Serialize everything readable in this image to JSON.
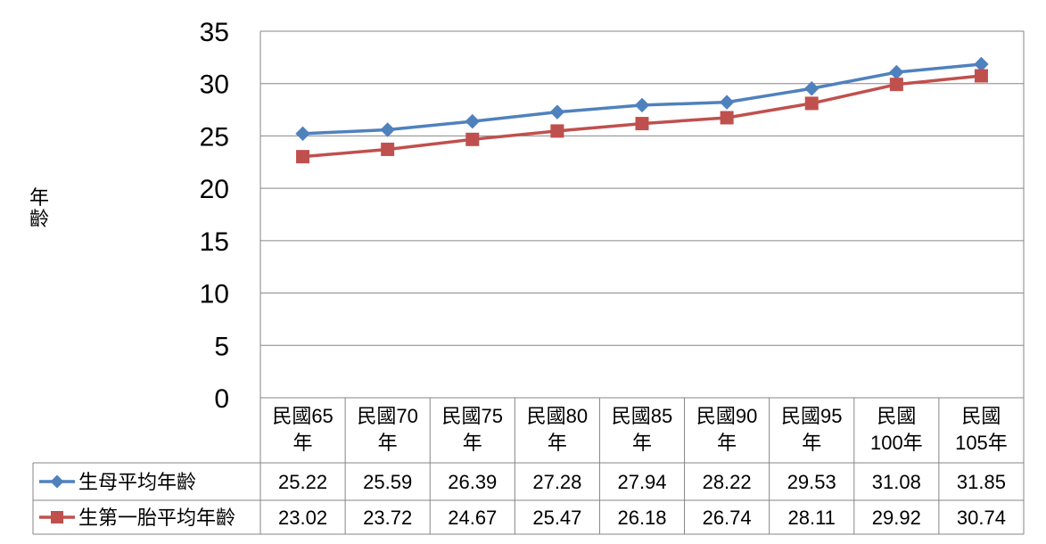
{
  "chart_data": {
    "type": "line",
    "title": "",
    "xlabel": "",
    "ylabel": "年齡",
    "ylim": [
      0,
      35
    ],
    "yticks": [
      0,
      5,
      10,
      15,
      20,
      25,
      30,
      35
    ],
    "grid": true,
    "legend": "data-table",
    "categories": [
      [
        "民國65",
        "年"
      ],
      [
        "民國70",
        "年"
      ],
      [
        "民國75",
        "年"
      ],
      [
        "民國80",
        "年"
      ],
      [
        "民國85",
        "年"
      ],
      [
        "民國90",
        "年"
      ],
      [
        "民國95",
        "年"
      ],
      [
        "民國",
        "100年"
      ],
      [
        "民國",
        "105年"
      ]
    ],
    "series": [
      {
        "name": "生母平均年齡",
        "marker": "diamond",
        "color": "#4F81BD",
        "values": [
          25.22,
          25.59,
          26.39,
          27.28,
          27.94,
          28.22,
          29.53,
          31.08,
          31.85
        ],
        "labels": [
          "25.22",
          "25.59",
          "26.39",
          "27.28",
          "27.94",
          "28.22",
          "29.53",
          "31.08",
          "31.85"
        ]
      },
      {
        "name": "生第一胎平均年齡",
        "marker": "square",
        "color": "#C0504D",
        "values": [
          23.02,
          23.72,
          24.67,
          25.47,
          26.18,
          26.74,
          28.11,
          29.92,
          30.74
        ],
        "labels": [
          "23.02",
          "23.72",
          "24.67",
          "25.47",
          "26.18",
          "26.74",
          "28.11",
          "29.92",
          "30.74"
        ]
      }
    ]
  }
}
